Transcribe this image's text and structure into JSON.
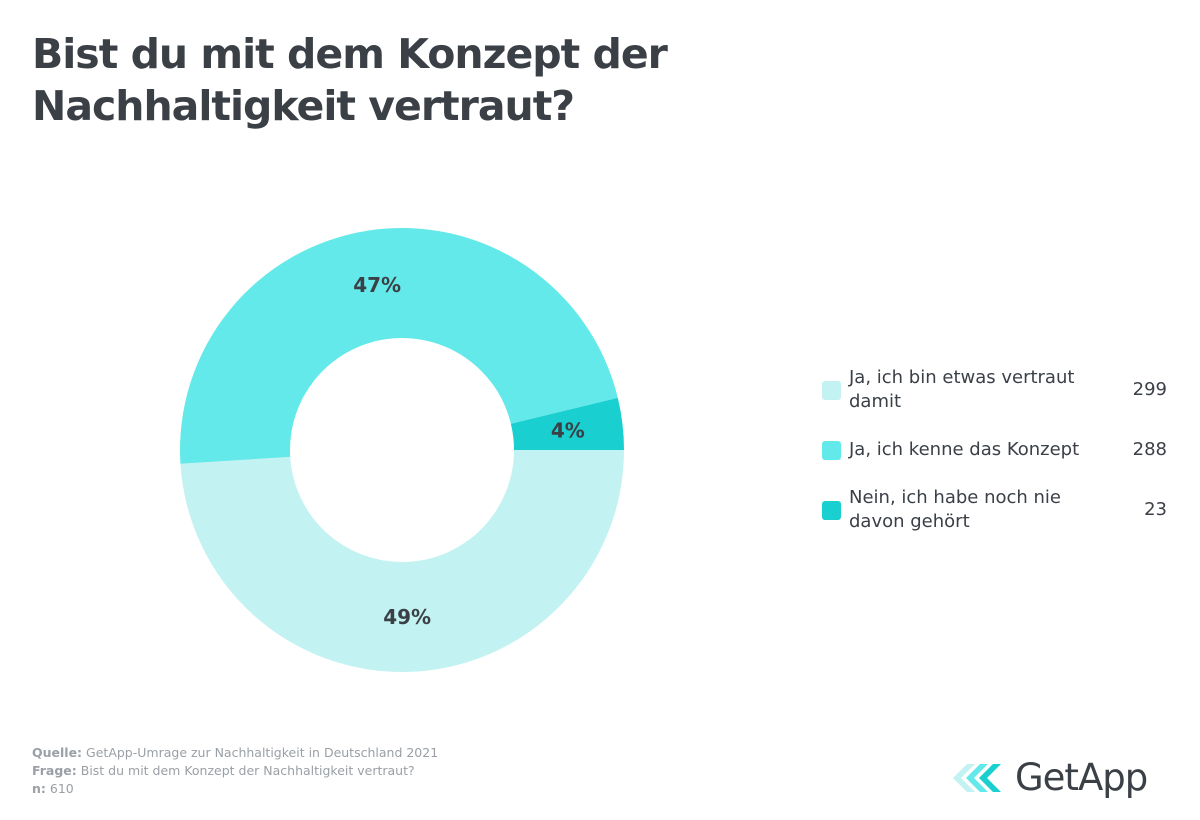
{
  "title": "Bist du mit dem Konzept der Nachhaltigkeit vertraut?",
  "chart_data": {
    "type": "pie",
    "title": "Bist du mit dem Konzept der Nachhaltigkeit vertraut?",
    "categories": [
      "Ja, ich bin etwas vertraut damit",
      "Ja, ich kenne das Konzept",
      "Nein, ich habe noch nie davon gehört"
    ],
    "values": [
      299,
      288,
      23
    ],
    "labels": [
      "49%",
      "47%",
      "4%"
    ],
    "colors": [
      "#c3f2f2",
      "#63e9e9",
      "#19cfcf"
    ],
    "legend_position": "right"
  },
  "footer": {
    "source_label": "Quelle:",
    "source_text": "GetApp-Umrage zur Nachhaltigkeit in Deutschland 2021",
    "question_label": "Frage:",
    "question_text": "Bist du mit dem Konzept der Nachhaltigkeit vertraut?",
    "n_label": "n:",
    "n_value": "610"
  },
  "logo": {
    "text": "GetApp",
    "icon": "getapp-chevrons-icon"
  }
}
